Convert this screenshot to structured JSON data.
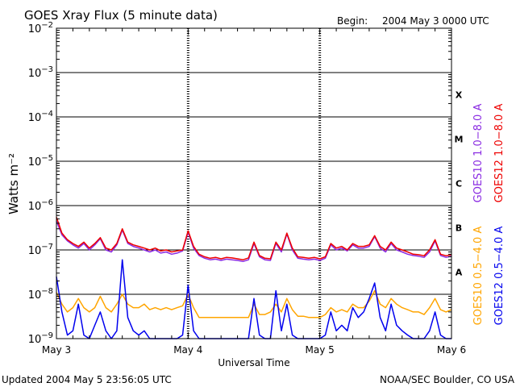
{
  "header": {
    "title": "GOES Xray Flux (5 minute data)",
    "begin_label": "Begin:",
    "begin_value": "2004 May 3 0000 UTC"
  },
  "footer": {
    "updated": "Updated 2004 May  5 23:56:05 UTC",
    "credit": "NOAA/SEC Boulder, CO USA"
  },
  "chart_data": {
    "type": "line",
    "title": "GOES Xray Flux (5 minute data)",
    "xlabel": "Universal Time",
    "ylabel": "Watts m⁻²",
    "yscale": "log",
    "ylim": [
      1e-09,
      0.01
    ],
    "xlim": [
      "2004-05-03 00:00",
      "2004-05-06 00:00"
    ],
    "x_ticks": [
      "May 3",
      "May 4",
      "May 5",
      "May 6"
    ],
    "y_ticks": [
      {
        "value": 1e-09,
        "base": "10",
        "exp": "−9"
      },
      {
        "value": 1e-08,
        "base": "10",
        "exp": "−8"
      },
      {
        "value": 1e-07,
        "base": "10",
        "exp": "−7"
      },
      {
        "value": 1e-06,
        "base": "10",
        "exp": "−6"
      },
      {
        "value": 1e-05,
        "base": "10",
        "exp": "−5"
      },
      {
        "value": 0.0001,
        "base": "10",
        "exp": "−4"
      },
      {
        "value": 0.001,
        "base": "10",
        "exp": "−3"
      },
      {
        "value": 0.01,
        "base": "10",
        "exp": "−2"
      }
    ],
    "flare_classes": [
      {
        "label": "A",
        "low": 1e-08,
        "high": 1e-07
      },
      {
        "label": "B",
        "low": 1e-07,
        "high": 1e-06
      },
      {
        "label": "C",
        "low": 1e-06,
        "high": 1e-05
      },
      {
        "label": "M",
        "low": 1e-05,
        "high": 0.0001
      },
      {
        "label": "X",
        "low": 0.0001,
        "high": 0.001
      }
    ],
    "grid": "horizontal lines at each decade from 1e-8 to 1e-3",
    "legend_position": "right, vertical",
    "series": [
      {
        "name": "GOES10 1.0−8.0 A",
        "color": "#8a2be2",
        "x_hours": [
          0,
          1,
          2,
          3,
          4,
          5,
          6,
          7,
          8,
          9,
          10,
          11,
          12,
          13,
          14,
          15,
          16,
          17,
          18,
          19,
          20,
          21,
          22,
          23,
          24,
          25,
          26,
          27,
          28,
          29,
          30,
          31,
          32,
          33,
          34,
          35,
          36,
          37,
          38,
          39,
          40,
          41,
          42,
          43,
          44,
          45,
          46,
          47,
          48,
          49,
          50,
          51,
          52,
          53,
          54,
          55,
          56,
          57,
          58,
          59,
          60,
          61,
          62,
          63,
          64,
          65,
          66,
          67,
          68,
          69,
          70,
          71,
          72
        ],
        "values": [
          4.5e-07,
          2.2e-07,
          1.6e-07,
          1.3e-07,
          1.1e-07,
          1.4e-07,
          1e-07,
          1.3e-07,
          1.8e-07,
          1e-07,
          9e-08,
          1.3e-07,
          2.8e-07,
          1.4e-07,
          1.2e-07,
          1.1e-07,
          1e-07,
          9e-08,
          1e-07,
          8.5e-08,
          9e-08,
          8e-08,
          8.5e-08,
          9.5e-08,
          2.5e-07,
          1.1e-07,
          7.5e-08,
          6.5e-08,
          6e-08,
          6.2e-08,
          5.8e-08,
          6.2e-08,
          6e-08,
          5.8e-08,
          5.5e-08,
          6e-08,
          1.4e-07,
          7e-08,
          6e-08,
          5.8e-08,
          1.4e-07,
          9e-08,
          2.3e-07,
          1e-07,
          6.5e-08,
          6.2e-08,
          6e-08,
          6.2e-08,
          5.8e-08,
          6.5e-08,
          1.3e-07,
          1e-07,
          1.1e-07,
          9.5e-08,
          1.3e-07,
          1.1e-07,
          1.1e-07,
          1.2e-07,
          2e-07,
          1.1e-07,
          9e-08,
          1.4e-07,
          1e-07,
          9e-08,
          8e-08,
          7.5e-08,
          7.2e-08,
          6.8e-08,
          9e-08,
          1.6e-07,
          7.5e-08,
          6.8e-08,
          7.2e-08
        ]
      },
      {
        "name": "GOES12 1.0−8.0 A",
        "color": "#ee0000",
        "x_hours": [
          0,
          1,
          2,
          3,
          4,
          5,
          6,
          7,
          8,
          9,
          10,
          11,
          12,
          13,
          14,
          15,
          16,
          17,
          18,
          19,
          20,
          21,
          22,
          23,
          24,
          25,
          26,
          27,
          28,
          29,
          30,
          31,
          32,
          33,
          34,
          35,
          36,
          37,
          38,
          39,
          40,
          41,
          42,
          43,
          44,
          45,
          46,
          47,
          48,
          49,
          50,
          51,
          52,
          53,
          54,
          55,
          56,
          57,
          58,
          59,
          60,
          61,
          62,
          63,
          64,
          65,
          66,
          67,
          68,
          69,
          70,
          71,
          72
        ],
        "values": [
          5.5e-07,
          2.4e-07,
          1.7e-07,
          1.4e-07,
          1.2e-07,
          1.5e-07,
          1.1e-07,
          1.4e-07,
          1.9e-07,
          1.1e-07,
          1e-07,
          1.4e-07,
          3e-07,
          1.5e-07,
          1.3e-07,
          1.2e-07,
          1.1e-07,
          1e-07,
          1.1e-07,
          9.5e-08,
          1e-07,
          9e-08,
          9.5e-08,
          1e-07,
          2.7e-07,
          1.2e-07,
          8e-08,
          7e-08,
          6.5e-08,
          6.8e-08,
          6.3e-08,
          6.8e-08,
          6.6e-08,
          6.3e-08,
          6e-08,
          6.6e-08,
          1.5e-07,
          7.5e-08,
          6.5e-08,
          6.3e-08,
          1.5e-07,
          1e-07,
          2.4e-07,
          1.1e-07,
          7e-08,
          6.8e-08,
          6.5e-08,
          6.8e-08,
          6.3e-08,
          7e-08,
          1.4e-07,
          1.1e-07,
          1.2e-07,
          1e-07,
          1.4e-07,
          1.2e-07,
          1.2e-07,
          1.3e-07,
          2.1e-07,
          1.2e-07,
          1e-07,
          1.5e-07,
          1.1e-07,
          1e-07,
          9e-08,
          8e-08,
          7.8e-08,
          7.4e-08,
          1e-07,
          1.7e-07,
          8e-08,
          7.4e-08,
          7.8e-08
        ]
      },
      {
        "name": "GOES10 0.5−4.0 A",
        "color": "#ffa500",
        "x_hours": [
          0,
          1,
          2,
          3,
          4,
          5,
          6,
          7,
          8,
          9,
          10,
          11,
          12,
          13,
          14,
          15,
          16,
          17,
          18,
          19,
          20,
          21,
          22,
          23,
          24,
          25,
          26,
          27,
          28,
          29,
          30,
          31,
          32,
          33,
          34,
          35,
          36,
          37,
          38,
          39,
          40,
          41,
          42,
          43,
          44,
          45,
          46,
          47,
          48,
          49,
          50,
          51,
          52,
          53,
          54,
          55,
          56,
          57,
          58,
          59,
          60,
          61,
          62,
          63,
          64,
          65,
          66,
          67,
          68,
          69,
          70,
          71,
          72
        ],
        "values": [
          1.1e-08,
          6e-09,
          4e-09,
          5e-09,
          8e-09,
          5e-09,
          4e-09,
          5e-09,
          9e-09,
          5e-09,
          4e-09,
          6e-09,
          1e-08,
          6e-09,
          5e-09,
          5e-09,
          6e-09,
          4.5e-09,
          5e-09,
          4.5e-09,
          5e-09,
          4.5e-09,
          5e-09,
          5.5e-09,
          1e-08,
          5e-09,
          3e-09,
          3e-09,
          3e-09,
          3e-09,
          3e-09,
          3e-09,
          3e-09,
          3e-09,
          3e-09,
          3e-09,
          6e-09,
          3.5e-09,
          3.5e-09,
          4e-09,
          6e-09,
          4e-09,
          8e-09,
          4.5e-09,
          3.2e-09,
          3.2e-09,
          3e-09,
          3e-09,
          3e-09,
          3.5e-09,
          5e-09,
          4e-09,
          4.5e-09,
          4e-09,
          6e-09,
          5e-09,
          5e-09,
          7e-09,
          1.2e-08,
          6e-09,
          5e-09,
          8e-09,
          6e-09,
          5e-09,
          4.5e-09,
          4e-09,
          4e-09,
          3.5e-09,
          5e-09,
          8e-09,
          4.5e-09,
          4e-09,
          4.5e-09
        ]
      },
      {
        "name": "GOES12 0.5−4.0 A",
        "color": "#0000ee",
        "x_hours": [
          0,
          1,
          2,
          3,
          4,
          5,
          6,
          7,
          8,
          9,
          10,
          11,
          12,
          13,
          14,
          15,
          16,
          17,
          18,
          19,
          20,
          21,
          22,
          23,
          24,
          25,
          26,
          27,
          28,
          29,
          30,
          31,
          32,
          33,
          34,
          35,
          36,
          37,
          38,
          39,
          40,
          41,
          42,
          43,
          44,
          45,
          46,
          47,
          48,
          49,
          50,
          51,
          52,
          53,
          54,
          55,
          56,
          57,
          58,
          59,
          60,
          61,
          62,
          63,
          64,
          65,
          66,
          67,
          68,
          69,
          70,
          71,
          72
        ],
        "values": [
          2.5e-08,
          4e-09,
          1.2e-09,
          1.5e-09,
          6e-09,
          1.2e-09,
          1e-09,
          2e-09,
          4e-09,
          1.5e-09,
          1e-09,
          1.5e-09,
          6e-08,
          3e-09,
          1.5e-09,
          1.2e-09,
          1.5e-09,
          1e-09,
          1e-09,
          1e-09,
          1e-09,
          1e-09,
          1e-09,
          1.2e-09,
          1.6e-08,
          1.5e-09,
          1e-09,
          1e-09,
          1e-09,
          1e-09,
          1e-09,
          1e-09,
          1e-09,
          1e-09,
          1e-09,
          1e-09,
          8e-09,
          1.2e-09,
          1e-09,
          1e-09,
          1.2e-08,
          1.5e-09,
          6e-09,
          1.2e-09,
          1e-09,
          1e-09,
          1e-09,
          1e-09,
          1e-09,
          1.2e-09,
          4e-09,
          1.5e-09,
          2e-09,
          1.5e-09,
          5e-09,
          3e-09,
          4e-09,
          8e-09,
          1.8e-08,
          3e-09,
          1.5e-09,
          6e-09,
          2e-09,
          1.5e-09,
          1.2e-09,
          1e-09,
          1e-09,
          1e-09,
          1.5e-09,
          4e-09,
          1.2e-09,
          1e-09,
          1e-09
        ]
      }
    ]
  }
}
